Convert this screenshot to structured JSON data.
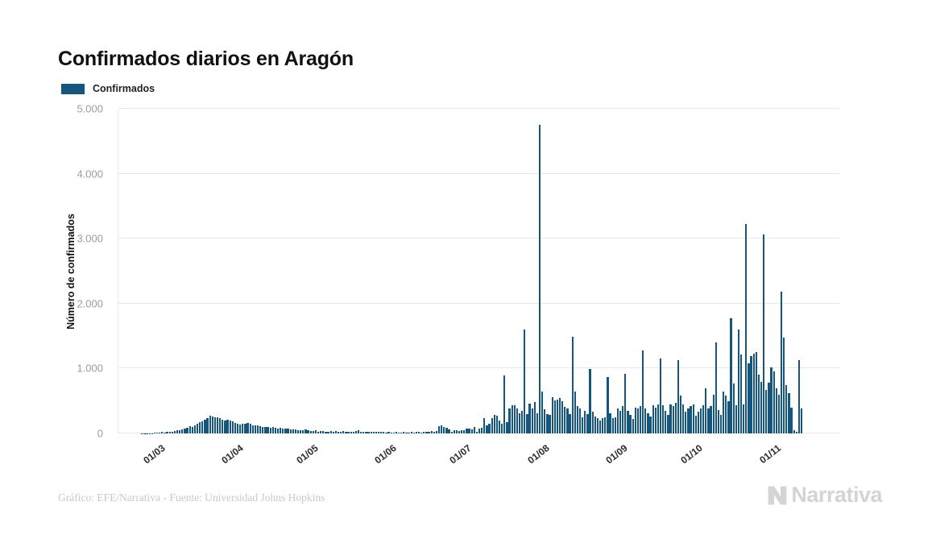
{
  "title": "Confirmados diarios en Aragón",
  "legend": {
    "items": [
      {
        "label": "Confirmados",
        "color": "#14567d"
      }
    ]
  },
  "y_axis": {
    "title": "Número de confirmados",
    "ticks": [
      "0",
      "1.000",
      "2.000",
      "3.000",
      "4.000",
      "5.000"
    ]
  },
  "x_axis": {
    "ticks": [
      "01/03",
      "01/04",
      "01/05",
      "01/06",
      "01/07",
      "01/08",
      "01/09",
      "01/10",
      "01/11"
    ]
  },
  "footer": {
    "credit": "Gráfico: EFE/Narrativa - Fuente: Universidad Johns Hopkins",
    "brand": "Narrativa"
  },
  "chart_data": {
    "type": "bar",
    "title": "Confirmados diarios en Aragón",
    "xlabel": "",
    "ylabel": "Número de confirmados",
    "ylim": [
      0,
      5000
    ],
    "grid": "horizontal",
    "legend_position": "top-left",
    "x_unit": "day",
    "x_tick_labels": [
      "01/03",
      "01/04",
      "01/05",
      "01/06",
      "01/07",
      "01/08",
      "01/09",
      "01/10",
      "01/11"
    ],
    "x_tick_indices": [
      14,
      45,
      75,
      106,
      136,
      167,
      198,
      228,
      259
    ],
    "series": [
      {
        "name": "Confirmados",
        "color": "#14567d",
        "values": [
          0,
          0,
          0,
          0,
          0,
          0,
          0,
          0,
          0,
          2,
          3,
          2,
          4,
          6,
          10,
          12,
          15,
          20,
          18,
          25,
          30,
          28,
          40,
          50,
          45,
          60,
          75,
          90,
          110,
          100,
          130,
          150,
          170,
          190,
          215,
          240,
          270,
          260,
          245,
          250,
          230,
          215,
          200,
          210,
          195,
          185,
          160,
          150,
          140,
          155,
          150,
          160,
          145,
          130,
          120,
          125,
          110,
          100,
          105,
          95,
          90,
          95,
          85,
          80,
          85,
          75,
          70,
          75,
          65,
          60,
          65,
          55,
          50,
          55,
          60,
          50,
          40,
          35,
          45,
          30,
          35,
          40,
          30,
          25,
          35,
          30,
          40,
          25,
          30,
          35,
          25,
          20,
          30,
          25,
          35,
          45,
          30,
          25,
          20,
          25,
          30,
          20,
          25,
          20,
          25,
          30,
          15,
          20,
          10,
          15,
          20,
          10,
          15,
          25,
          15,
          10,
          20,
          15,
          25,
          20,
          15,
          30,
          25,
          20,
          35,
          30,
          40,
          110,
          130,
          100,
          90,
          60,
          30,
          50,
          45,
          40,
          45,
          55,
          80,
          75,
          60,
          95,
          20,
          70,
          90,
          230,
          130,
          150,
          240,
          280,
          270,
          200,
          150,
          890,
          180,
          385,
          435,
          440,
          380,
          310,
          350,
          1600,
          300,
          455,
          385,
          485,
          310,
          4750,
          650,
          375,
          300,
          280,
          560,
          510,
          520,
          550,
          500,
          415,
          380,
          300,
          1490,
          640,
          420,
          380,
          250,
          350,
          300,
          990,
          330,
          260,
          230,
          200,
          230,
          250,
          870,
          310,
          240,
          250,
          380,
          350,
          420,
          920,
          350,
          280,
          220,
          400,
          380,
          420,
          1280,
          390,
          310,
          260,
          430,
          400,
          450,
          1150,
          430,
          350,
          280,
          450,
          420,
          470,
          1130,
          580,
          450,
          330,
          380,
          420,
          450,
          270,
          330,
          390,
          440,
          700,
          380,
          420,
          600,
          1400,
          360,
          290,
          640,
          580,
          500,
          1780,
          770,
          440,
          1600,
          1220,
          450,
          3220,
          1075,
          1190,
          1230,
          1250,
          900,
          800,
          3060,
          670,
          780,
          1020,
          950,
          700,
          600,
          2190,
          1480,
          750,
          620,
          400,
          50,
          30,
          1130,
          380,
          0
        ]
      }
    ]
  }
}
